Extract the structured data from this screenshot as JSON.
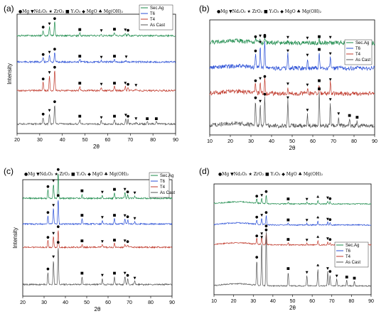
{
  "colors": {
    "Sec.Ag": "#1b8a4a",
    "T6": "#2a4fd6",
    "T4": "#c0392b",
    "As Cast": "#555555"
  },
  "key_text": "●Mg ▼Nd₂O₃ ★ ZrO₂ ■ Y₂O₃ ◆ MgO ♣ Mg(OH)₂",
  "chart_data": [
    {
      "panel_label": "(a)",
      "type": "line",
      "xlabel": "2θ",
      "ylabel": "Intensity",
      "xlim": [
        20,
        90
      ],
      "xticks": [
        "20",
        "30",
        "40",
        "50",
        "60",
        "70",
        "80",
        "90"
      ],
      "key": "●Mg ▼Nd₂O₃ ★ ZrO₂ ■ Y₂O₃ ◆ MgO ♣ Mg(OH)₂",
      "legend": [
        "Sec.Ag",
        "T6",
        "T4",
        "As Cast"
      ],
      "series": [
        {
          "name": "Sec.Ag",
          "peaks": [
            [
              31.5,
              0.35
            ],
            [
              34.3,
              0.55
            ],
            [
              36.6,
              0.9
            ],
            [
              47.7,
              0.2
            ],
            [
              57.2,
              0.12
            ],
            [
              63.0,
              0.22
            ],
            [
              67.8,
              0.18
            ],
            [
              69.0,
              0.15
            ]
          ]
        },
        {
          "name": "T6",
          "peaks": [
            [
              31.5,
              0.35
            ],
            [
              34.3,
              0.5
            ],
            [
              36.6,
              0.75
            ],
            [
              47.7,
              0.2
            ],
            [
              57.2,
              0.12
            ],
            [
              63.0,
              0.2
            ],
            [
              68.2,
              0.15
            ]
          ]
        },
        {
          "name": "T4",
          "peaks": [
            [
              31.5,
              0.4
            ],
            [
              34.3,
              0.7
            ],
            [
              36.6,
              0.95
            ],
            [
              47.7,
              0.2
            ],
            [
              57.2,
              0.15
            ],
            [
              63.0,
              0.2
            ],
            [
              67.8,
              0.2
            ],
            [
              69.0,
              0.15
            ],
            [
              72.5,
              0.1
            ]
          ]
        },
        {
          "name": "As Cast",
          "peaks": [
            [
              31.5,
              0.3
            ],
            [
              34.3,
              0.45
            ],
            [
              36.6,
              0.85
            ],
            [
              47.7,
              0.2
            ],
            [
              57.2,
              0.15
            ],
            [
              63.0,
              0.2
            ],
            [
              68.0,
              0.25
            ],
            [
              69.0,
              0.2
            ],
            [
              72.5,
              0.1
            ],
            [
              77.5,
              0.1
            ],
            [
              81.5,
              0.1
            ]
          ]
        }
      ]
    },
    {
      "panel_label": "(b)",
      "type": "line",
      "xlabel": "2θ",
      "ylabel": "",
      "xlim": [
        10,
        90
      ],
      "xticks": [
        "10",
        "20",
        "30",
        "40",
        "50",
        "60",
        "70",
        "80",
        "90"
      ],
      "key": "●Mg ▼Nd₂O₃ ★ ZrO₂ ■ Y₂O₃ ◆ MgO ♣ Mg(OH)₂",
      "legend": [
        "Sec.Ag",
        "T6",
        "T4",
        "As Cast"
      ],
      "series": [
        {
          "name": "Sec.Ag",
          "peaks": [
            [
              32.2,
              0.2
            ],
            [
              34.5,
              0.25
            ],
            [
              36.7,
              0.3
            ],
            [
              47.9,
              0.15
            ],
            [
              57.4,
              0.12
            ],
            [
              63.1,
              0.2
            ],
            [
              68.5,
              0.15
            ]
          ]
        },
        {
          "name": "T6",
          "peaks": [
            [
              32.2,
              0.5
            ],
            [
              34.5,
              0.8
            ],
            [
              36.7,
              1.0
            ],
            [
              47.9,
              0.5
            ],
            [
              57.4,
              0.35
            ],
            [
              63.1,
              0.55
            ],
            [
              68.5,
              0.4
            ]
          ]
        },
        {
          "name": "T4",
          "peaks": [
            [
              32.2,
              0.45
            ],
            [
              34.5,
              0.55
            ],
            [
              36.7,
              0.65
            ],
            [
              47.9,
              0.3
            ],
            [
              57.4,
              0.25
            ],
            [
              63.1,
              0.45
            ],
            [
              68.5,
              0.5
            ]
          ]
        },
        {
          "name": "As Cast",
          "peaks": [
            [
              32.2,
              0.7
            ],
            [
              34.5,
              0.6
            ],
            [
              36.7,
              0.8
            ],
            [
              47.9,
              0.7
            ],
            [
              57.4,
              0.35
            ],
            [
              63.1,
              0.95
            ],
            [
              68.5,
              0.65
            ],
            [
              72.5,
              0.25
            ],
            [
              77.8,
              0.2
            ],
            [
              81.5,
              0.15
            ]
          ]
        }
      ]
    },
    {
      "panel_label": "(c)",
      "type": "line",
      "xlabel": "2θ",
      "ylabel": "Intensity",
      "xlim": [
        20,
        90
      ],
      "xticks": [
        "20",
        "30",
        "40",
        "50",
        "60",
        "70",
        "80",
        "90"
      ],
      "key": "●Mg ▼Nd₂O₃ ★ ZrO₂ ■ Y₂O₃ ◆ MgO ♣ Mg(OH)₂",
      "legend": [
        "Sec.Ag",
        "T6",
        "T4",
        "As Cast"
      ],
      "series": [
        {
          "name": "Sec.Ag",
          "peaks": [
            [
              31.8,
              0.3
            ],
            [
              34.4,
              0.5
            ],
            [
              36.6,
              0.9
            ],
            [
              47.8,
              0.15
            ],
            [
              57.3,
              0.1
            ],
            [
              63.0,
              0.2
            ],
            [
              67.9,
              0.2
            ],
            [
              69.2,
              0.12
            ],
            [
              72.5,
              0.08
            ]
          ]
        },
        {
          "name": "T6",
          "peaks": [
            [
              31.8,
              0.3
            ],
            [
              34.4,
              0.55
            ],
            [
              36.6,
              0.9
            ],
            [
              47.8,
              0.2
            ],
            [
              57.3,
              0.12
            ],
            [
              63.0,
              0.2
            ],
            [
              67.9,
              0.18
            ],
            [
              69.2,
              0.15
            ],
            [
              72.5,
              0.08
            ]
          ]
        },
        {
          "name": "T4",
          "peaks": [
            [
              31.8,
              0.25
            ],
            [
              34.4,
              0.4
            ],
            [
              36.6,
              0.65
            ],
            [
              47.8,
              0.12
            ],
            [
              57.3,
              0.1
            ],
            [
              63.0,
              0.15
            ],
            [
              67.9,
              0.12
            ],
            [
              69.2,
              0.1
            ]
          ]
        },
        {
          "name": "As Cast",
          "peaks": [
            [
              31.8,
              0.3
            ],
            [
              34.4,
              0.6
            ],
            [
              36.6,
              0.95
            ],
            [
              47.8,
              0.2
            ],
            [
              57.3,
              0.15
            ],
            [
              63.0,
              0.2
            ],
            [
              67.9,
              0.2
            ],
            [
              69.2,
              0.15
            ],
            [
              72.5,
              0.08
            ]
          ]
        }
      ]
    },
    {
      "panel_label": "(d)",
      "type": "line",
      "xlabel": "2θ",
      "ylabel": "",
      "xlim": [
        10,
        90
      ],
      "xticks": [
        "10",
        "20",
        "30",
        "40",
        "50",
        "60",
        "70",
        "80",
        "90"
      ],
      "key": "●Mg ▼Nd₂O₃ ★ ZrO₂ ■ Y₂O₃ ◆ MgO ♣ Mg(OH)₂",
      "legend": [
        "Sec.Ag",
        "T6",
        "T4",
        "As Cast"
      ],
      "series": [
        {
          "name": "Sec.Ag",
          "peaks": [
            [
              31.8,
              0.25
            ],
            [
              34.3,
              0.3
            ],
            [
              36.6,
              0.5
            ],
            [
              47.8,
              0.1
            ],
            [
              57.3,
              0.08
            ],
            [
              62.9,
              0.2
            ],
            [
              67.9,
              0.15
            ],
            [
              69.1,
              0.12
            ]
          ]
        },
        {
          "name": "T6",
          "peaks": [
            [
              31.8,
              0.25
            ],
            [
              34.3,
              0.35
            ],
            [
              36.6,
              0.5
            ],
            [
              47.8,
              0.1
            ],
            [
              57.3,
              0.08
            ],
            [
              62.9,
              0.22
            ],
            [
              67.9,
              0.15
            ],
            [
              69.1,
              0.12
            ]
          ]
        },
        {
          "name": "T4",
          "peaks": [
            [
              31.8,
              0.3
            ],
            [
              34.3,
              0.4
            ],
            [
              36.6,
              0.6
            ],
            [
              47.8,
              0.12
            ],
            [
              57.3,
              0.08
            ],
            [
              62.9,
              0.22
            ],
            [
              67.9,
              0.15
            ],
            [
              69.1,
              0.12
            ]
          ]
        },
        {
          "name": "As Cast",
          "peaks": [
            [
              31.8,
              0.45
            ],
            [
              34.3,
              0.8
            ],
            [
              36.6,
              1.0
            ],
            [
              47.8,
              0.25
            ],
            [
              57.3,
              0.18
            ],
            [
              62.9,
              0.3
            ],
            [
              67.9,
              0.25
            ],
            [
              69.1,
              0.2
            ],
            [
              72.5,
              0.12
            ],
            [
              77.6,
              0.1
            ],
            [
              81.5,
              0.08
            ]
          ]
        }
      ]
    }
  ]
}
